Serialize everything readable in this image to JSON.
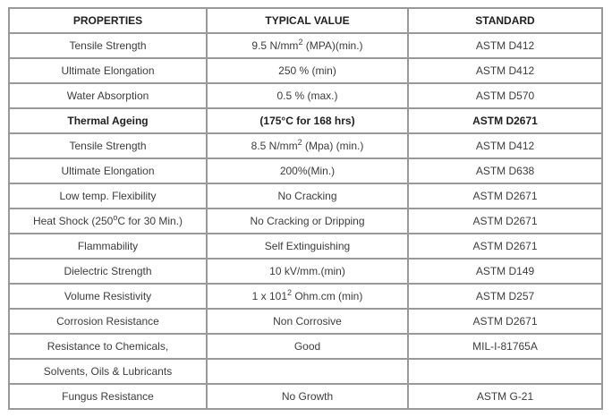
{
  "colors": {
    "border": "#999999",
    "body_text": "#3c3c3c",
    "header_text": "#1f1f1f",
    "background": "#ffffff"
  },
  "table": {
    "header": {
      "cells": [
        "PROPERTIES",
        "TYPICAL VALUE",
        "STANDARD"
      ]
    },
    "rows": [
      {
        "property": "Tensile Strength",
        "value": [
          {
            "t": "9.5 N/mm"
          },
          {
            "t": "2",
            "sup": true
          },
          {
            "t": " (MPA)(min.)"
          }
        ],
        "standard": "ASTM D412"
      },
      {
        "property": "Ultimate Elongation",
        "value": "250 % (min)",
        "standard": "ASTM D412"
      },
      {
        "property": "Water Absorption",
        "value": "0.5 % (max.)",
        "standard": "ASTM D570"
      },
      {
        "property": "Thermal Ageing",
        "value": "(175°C for 168 hrs)",
        "standard": "ASTM D2671",
        "bold": true
      },
      {
        "property": "Tensile Strength",
        "value": [
          {
            "t": "8.5 N/mm"
          },
          {
            "t": "2",
            "sup": true
          },
          {
            "t": " (Mpa) (min.)"
          }
        ],
        "standard": "ASTM D412"
      },
      {
        "property": "Ultimate Elongation",
        "value": "200%(Min.)",
        "standard": "ASTM D638"
      },
      {
        "property": "Low temp. Flexibility",
        "value": "No Cracking",
        "standard": "ASTM D2671"
      },
      {
        "property": [
          {
            "t": "Heat Shock (250"
          },
          {
            "t": "o",
            "sup": true
          },
          {
            "t": "C for 30 Min.)"
          }
        ],
        "value": "No Cracking or Dripping",
        "standard": "ASTM D2671"
      },
      {
        "property": "Flammability",
        "value": "Self Extinguishing",
        "standard": "ASTM D2671"
      },
      {
        "property": "Dielectric Strength",
        "value": "10 kV/mm.(min)",
        "standard": "ASTM D149"
      },
      {
        "property": "Volume Resistivity",
        "value": [
          {
            "t": "1 x 101"
          },
          {
            "t": "2",
            "sup": true
          },
          {
            "t": " Ohm.cm (min)"
          }
        ],
        "standard": "ASTM D257"
      },
      {
        "property": "Corrosion Resistance",
        "value": "Non Corrosive",
        "standard": "ASTM D2671"
      },
      {
        "property": "Resistance to Chemicals,",
        "value": "Good",
        "standard": "MIL-I-81765A"
      },
      {
        "property": "Solvents, Oils & Lubricants",
        "value": "",
        "standard": ""
      },
      {
        "property": "Fungus Resistance",
        "value": "No Growth",
        "standard": "ASTM G-21"
      }
    ]
  }
}
